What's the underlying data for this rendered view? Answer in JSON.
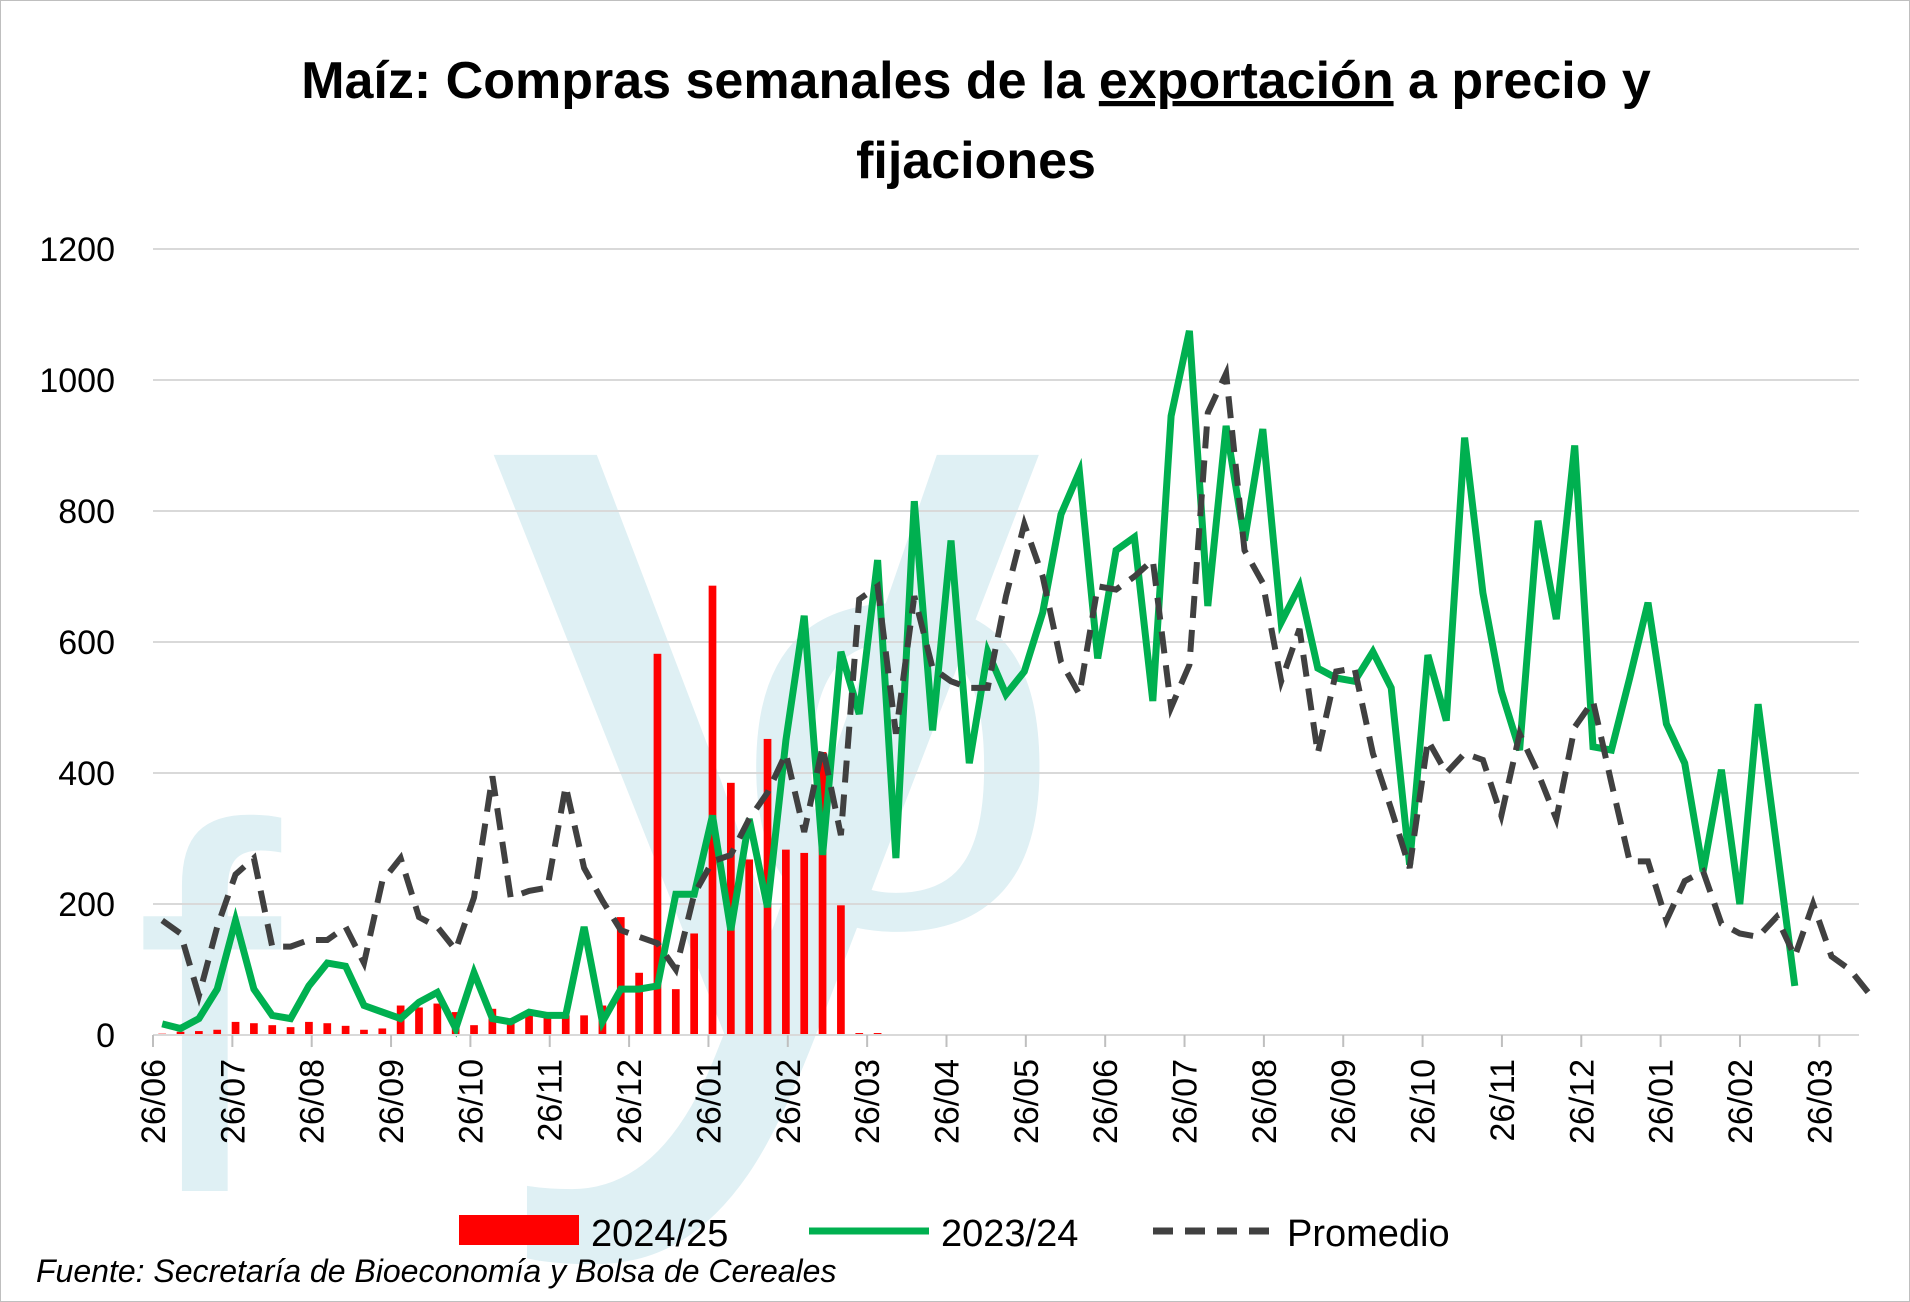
{
  "chart_data": {
    "type": "bar+line",
    "title_line1_pre": "Maíz: Compras semanales de la ",
    "title_line1_underlined": "exportación",
    "title_line1_post": " a precio y",
    "title_line2": "fijaciones",
    "xlabel": "",
    "ylabel": "",
    "ylim": [
      0,
      1200
    ],
    "yticks": [
      "0",
      "200",
      "400",
      "600",
      "800",
      "1000",
      "1200"
    ],
    "xticks": [
      "26/06",
      "26/07",
      "26/08",
      "26/09",
      "26/10",
      "26/11",
      "26/12",
      "26/01",
      "26/02",
      "26/03",
      "26/04",
      "26/05",
      "26/06",
      "26/07",
      "26/08",
      "26/09",
      "26/10",
      "26/11",
      "26/12",
      "26/01",
      "26/02",
      "26/03"
    ],
    "grid": "horizontal",
    "legend_position": "bottom",
    "watermark": "fyo",
    "source": "Fuente: Secretaría de Bioeconomía y Bolsa de Cereales",
    "weeks": 93,
    "series": [
      {
        "name": "2024/25",
        "kind": "bar",
        "color": "#ff0000",
        "values": [
          2,
          5,
          6,
          8,
          20,
          18,
          15,
          12,
          20,
          18,
          14,
          8,
          10,
          45,
          42,
          48,
          35,
          15,
          40,
          20,
          35,
          30,
          30,
          30,
          45,
          180,
          95,
          582,
          70,
          155,
          686,
          385,
          268,
          452,
          283,
          278,
          432,
          198,
          3,
          3
        ]
      },
      {
        "name": "2023/24",
        "kind": "line",
        "color": "#00b050",
        "values": [
          17,
          10,
          25,
          70,
          175,
          70,
          30,
          25,
          75,
          110,
          105,
          45,
          35,
          25,
          50,
          65,
          10,
          95,
          25,
          20,
          35,
          30,
          30,
          165,
          20,
          70,
          70,
          75,
          215,
          215,
          335,
          160,
          330,
          195,
          450,
          640,
          275,
          585,
          490,
          725,
          270,
          815,
          465,
          755,
          415,
          585,
          520,
          555,
          645,
          795,
          860,
          575,
          740,
          760,
          510,
          945,
          1075,
          655,
          930,
          755,
          925,
          630,
          685,
          560,
          545,
          540,
          585,
          530,
          260,
          580,
          480,
          912,
          675,
          525,
          435,
          785,
          635,
          900,
          440,
          435,
          545,
          660,
          475,
          415,
          250,
          405,
          200,
          505,
          290,
          75
        ]
      },
      {
        "name": "Promedio",
        "kind": "line-dashed",
        "color": "#404040",
        "values": [
          175,
          155,
          60,
          165,
          245,
          270,
          135,
          135,
          145,
          145,
          165,
          110,
          235,
          270,
          180,
          165,
          130,
          210,
          395,
          210,
          220,
          225,
          380,
          255,
          205,
          160,
          150,
          140,
          100,
          215,
          265,
          275,
          330,
          370,
          430,
          310,
          440,
          305,
          665,
          685,
          460,
          670,
          560,
          540,
          530,
          530,
          670,
          780,
          700,
          570,
          520,
          685,
          680,
          700,
          725,
          500,
          565,
          950,
          1010,
          740,
          690,
          540,
          620,
          430,
          555,
          560,
          430,
          345,
          255,
          450,
          400,
          430,
          420,
          335,
          460,
          400,
          330,
          470,
          510,
          385,
          265,
          265,
          175,
          235,
          250,
          170,
          155,
          150,
          180,
          120,
          200,
          120,
          100,
          65
        ]
      }
    ]
  }
}
